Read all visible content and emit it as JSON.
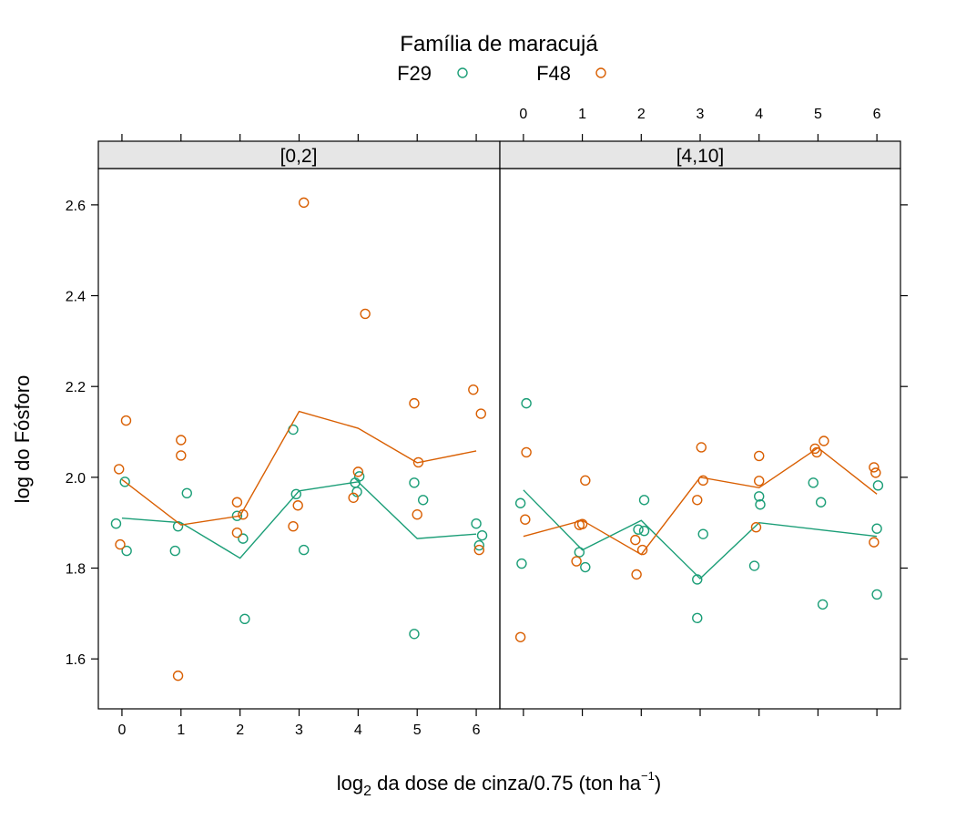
{
  "chart_data": {
    "type": "scatter",
    "legend": {
      "title": "Família de maracujá",
      "placement": "top-center",
      "entries": [
        {
          "name": "F29",
          "color": "#1b9e77"
        },
        {
          "name": "F48",
          "color": "#d95f02"
        }
      ]
    },
    "xlabel": {
      "prefix": "log",
      "subscript": "2",
      "middle": " da dose de cinza/0.75 (ton ha",
      "superscript": "−1",
      "suffix": ")"
    },
    "ylabel": "log do Fósforo",
    "xlim": [
      -0.4,
      6.4
    ],
    "ylim": [
      1.49,
      2.68
    ],
    "xticks": [
      "0",
      "1",
      "2",
      "3",
      "4",
      "5",
      "6"
    ],
    "yticks": [
      "1.6",
      "1.8",
      "2.0",
      "2.2",
      "2.4",
      "2.6"
    ],
    "grid": false,
    "panels": [
      {
        "strip": "[0,2]",
        "series": [
          {
            "name": "F29",
            "points": [
              [
                -0.1,
                1.898
              ],
              [
                0.05,
                1.99
              ],
              [
                0.08,
                1.838
              ],
              [
                0.9,
                1.838
              ],
              [
                0.95,
                1.892
              ],
              [
                1.1,
                1.965
              ],
              [
                1.95,
                1.915
              ],
              [
                2.05,
                1.865
              ],
              [
                2.08,
                1.688
              ],
              [
                2.9,
                2.105
              ],
              [
                2.95,
                1.963
              ],
              [
                3.08,
                1.84
              ],
              [
                3.95,
                1.988
              ],
              [
                3.98,
                1.968
              ],
              [
                4.02,
                2.002
              ],
              [
                4.95,
                1.988
              ],
              [
                4.95,
                1.655
              ],
              [
                5.1,
                1.95
              ],
              [
                6.0,
                1.898
              ],
              [
                6.05,
                1.85
              ],
              [
                6.1,
                1.872
              ]
            ],
            "line": [
              [
                0,
                1.91
              ],
              [
                1,
                1.9
              ],
              [
                2,
                1.822
              ],
              [
                3,
                1.97
              ],
              [
                4,
                1.99
              ],
              [
                5,
                1.865
              ],
              [
                6,
                1.875
              ]
            ]
          },
          {
            "name": "F48",
            "points": [
              [
                -0.05,
                2.018
              ],
              [
                -0.03,
                1.852
              ],
              [
                0.07,
                2.125
              ],
              [
                0.95,
                1.563
              ],
              [
                1.0,
                2.082
              ],
              [
                1.0,
                2.048
              ],
              [
                1.95,
                1.945
              ],
              [
                1.95,
                1.878
              ],
              [
                2.05,
                1.918
              ],
              [
                2.9,
                1.892
              ],
              [
                2.98,
                1.938
              ],
              [
                3.08,
                2.605
              ],
              [
                3.92,
                1.955
              ],
              [
                4.0,
                2.012
              ],
              [
                4.12,
                2.36
              ],
              [
                4.95,
                2.163
              ],
              [
                5.0,
                1.918
              ],
              [
                5.02,
                2.033
              ],
              [
                5.95,
                2.193
              ],
              [
                6.05,
                1.84
              ],
              [
                6.08,
                2.14
              ]
            ],
            "line": [
              [
                0,
                1.995
              ],
              [
                1,
                1.895
              ],
              [
                2,
                1.915
              ],
              [
                3,
                2.145
              ],
              [
                4,
                2.108
              ],
              [
                5,
                2.032
              ],
              [
                6,
                2.058
              ]
            ]
          }
        ]
      },
      {
        "strip": "[4,10]",
        "series": [
          {
            "name": "F29",
            "points": [
              [
                -0.05,
                1.943
              ],
              [
                -0.03,
                1.81
              ],
              [
                0.05,
                2.163
              ],
              [
                0.95,
                1.835
              ],
              [
                1.05,
                1.802
              ],
              [
                1.95,
                1.885
              ],
              [
                2.05,
                1.95
              ],
              [
                2.05,
                1.882
              ],
              [
                2.95,
                1.69
              ],
              [
                2.95,
                1.775
              ],
              [
                3.05,
                1.875
              ],
              [
                3.92,
                1.805
              ],
              [
                4.0,
                1.958
              ],
              [
                4.02,
                1.94
              ],
              [
                4.92,
                1.988
              ],
              [
                5.05,
                1.945
              ],
              [
                5.08,
                1.72
              ],
              [
                6.0,
                1.742
              ],
              [
                6.0,
                1.887
              ],
              [
                6.02,
                1.982
              ]
            ],
            "line": [
              [
                0,
                1.972
              ],
              [
                1,
                1.84
              ],
              [
                2,
                1.905
              ],
              [
                3,
                1.777
              ],
              [
                4,
                1.9
              ],
              [
                5,
                1.885
              ],
              [
                6,
                1.87
              ]
            ]
          },
          {
            "name": "F48",
            "points": [
              [
                -0.05,
                1.648
              ],
              [
                0.03,
                1.907
              ],
              [
                0.05,
                2.055
              ],
              [
                0.9,
                1.815
              ],
              [
                0.95,
                1.895
              ],
              [
                1.0,
                1.897
              ],
              [
                1.05,
                1.993
              ],
              [
                1.9,
                1.862
              ],
              [
                1.92,
                1.786
              ],
              [
                2.02,
                1.84
              ],
              [
                2.95,
                1.95
              ],
              [
                3.02,
                2.066
              ],
              [
                3.05,
                1.993
              ],
              [
                3.95,
                1.89
              ],
              [
                4.0,
                2.047
              ],
              [
                4.0,
                1.992
              ],
              [
                4.95,
                2.063
              ],
              [
                4.98,
                2.055
              ],
              [
                5.1,
                2.08
              ],
              [
                5.95,
                1.857
              ],
              [
                5.95,
                2.022
              ],
              [
                5.98,
                2.01
              ]
            ],
            "line": [
              [
                0,
                1.87
              ],
              [
                1,
                1.905
              ],
              [
                2,
                1.83
              ],
              [
                3,
                2.0
              ],
              [
                4,
                1.977
              ],
              [
                5,
                2.065
              ],
              [
                6,
                1.963
              ]
            ]
          }
        ]
      }
    ]
  }
}
